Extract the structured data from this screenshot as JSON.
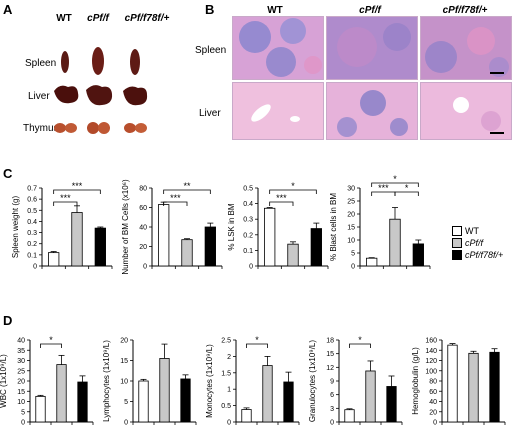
{
  "panels": {
    "a": "A",
    "b": "B",
    "c": "C",
    "d": "D"
  },
  "panel_a": {
    "columns": [
      "WT",
      "cPf/f",
      "cPf/f78f/+"
    ],
    "rows": [
      "Spleen",
      "Liver",
      "Thymus"
    ]
  },
  "panel_b": {
    "columns": [
      "WT",
      "cPf/f",
      "cPf/f78f/+"
    ],
    "rows": [
      "Spleen",
      "Liver"
    ]
  },
  "legend": [
    "WT",
    "cPf/f",
    "cPf/f78f/+"
  ],
  "colors": {
    "wt": "#ffffff",
    "cp": "#c8c8c8",
    "cp78": "#000000",
    "tissue": "#e7a9d2",
    "lymph": "#8a7fc8"
  },
  "chart_data": [
    {
      "type": "bar",
      "categories": [
        "WT",
        "cPf/f",
        "cPf/f78f/+"
      ],
      "values": [
        0.12,
        0.48,
        0.34
      ],
      "errors": [
        0.01,
        0.06,
        0.01
      ],
      "ylabel": "Spleen weight (g)",
      "ylim": [
        0,
        0.7
      ],
      "yticks": [
        0,
        0.1,
        0.2,
        0.3,
        0.4,
        0.5,
        0.6,
        0.7
      ],
      "tick_labels": [
        "0",
        "0.1",
        "0.2",
        "0.3",
        "0.4",
        "0.5",
        "0.6",
        "0.7"
      ],
      "significance": [
        {
          "a": 0,
          "b": 1,
          "label": "***"
        },
        {
          "a": 0,
          "b": 2,
          "label": "***"
        }
      ]
    },
    {
      "type": "bar",
      "categories": [
        "WT",
        "cPf/f",
        "cPf/f78f/+"
      ],
      "values": [
        63,
        27,
        40
      ],
      "errors": [
        2.5,
        1,
        4
      ],
      "ylabel": "Number of BM Cells (x10⁶)",
      "ylim": [
        0,
        80
      ],
      "yticks": [
        0,
        20,
        40,
        60,
        80
      ],
      "tick_labels": [
        "0",
        "20",
        "40",
        "60",
        "80"
      ],
      "significance": [
        {
          "a": 0,
          "b": 1,
          "label": "***"
        },
        {
          "a": 0,
          "b": 2,
          "label": "**"
        }
      ]
    },
    {
      "type": "bar",
      "categories": [
        "WT",
        "cPf/f",
        "cPf/f78f/+"
      ],
      "values": [
        0.37,
        0.14,
        0.24
      ],
      "errors": [
        0.005,
        0.015,
        0.035
      ],
      "ylabel": "% LSK in BM",
      "ylim": [
        0,
        0.5
      ],
      "yticks": [
        0,
        0.1,
        0.2,
        0.3,
        0.4,
        0.5
      ],
      "tick_labels": [
        "0",
        "0.1",
        "0.2",
        "0.3",
        "0.4",
        "0.5"
      ],
      "significance": [
        {
          "a": 0,
          "b": 1,
          "label": "***"
        },
        {
          "a": 0,
          "b": 2,
          "label": "*"
        }
      ]
    },
    {
      "type": "bar",
      "categories": [
        "WT",
        "cPf/f",
        "cPf/f78f/+"
      ],
      "values": [
        3,
        18,
        8.5
      ],
      "errors": [
        0.2,
        4.5,
        1.5
      ],
      "ylabel": "% Blast cells in BM",
      "ylim": [
        0,
        30
      ],
      "yticks": [
        0,
        5,
        10,
        15,
        20,
        25,
        30
      ],
      "tick_labels": [
        "0",
        "5",
        "10",
        "15",
        "20",
        "25",
        "30"
      ],
      "significance": [
        {
          "a": 0,
          "b": 1,
          "label": "***"
        },
        {
          "a": 1,
          "b": 2,
          "label": "*"
        },
        {
          "a": 0,
          "b": 2,
          "label": "*"
        }
      ]
    },
    {
      "type": "bar",
      "categories": [
        "WT",
        "cPf/f",
        "cPf/f78f/+"
      ],
      "values": [
        12.5,
        28,
        19.5
      ],
      "errors": [
        0.5,
        4.5,
        3
      ],
      "ylabel": "WBC (1x10⁹/L)",
      "ylim": [
        0,
        40
      ],
      "yticks": [
        0,
        5,
        10,
        15,
        20,
        25,
        30,
        35,
        40
      ],
      "tick_labels": [
        "0",
        "5",
        "10",
        "15",
        "20",
        "25",
        "30",
        "35",
        "40"
      ],
      "significance": [
        {
          "a": 0,
          "b": 1,
          "label": "*"
        }
      ]
    },
    {
      "type": "bar",
      "categories": [
        "WT",
        "cPf/f",
        "cPf/f78f/+"
      ],
      "values": [
        10,
        15.5,
        10.5
      ],
      "errors": [
        0.4,
        3.5,
        1
      ],
      "ylabel": "Lymphocytes (1x10⁹/L)",
      "ylim": [
        0,
        20
      ],
      "yticks": [
        0,
        5,
        10,
        15,
        20
      ],
      "tick_labels": [
        "0",
        "5",
        "10",
        "15",
        "20"
      ],
      "significance": []
    },
    {
      "type": "bar",
      "categories": [
        "WT",
        "cPf/f",
        "cPf/f78f/+"
      ],
      "values": [
        0.38,
        1.72,
        1.22
      ],
      "errors": [
        0.05,
        0.28,
        0.3
      ],
      "ylabel": "Monocytes (1x10⁹/L)",
      "ylim": [
        0,
        2.5
      ],
      "yticks": [
        0,
        0.5,
        1,
        1.5,
        2,
        2.5
      ],
      "tick_labels": [
        "0",
        "0.5",
        "1",
        "1.5",
        "2",
        "2.5"
      ],
      "significance": [
        {
          "a": 0,
          "b": 1,
          "label": "*"
        }
      ]
    },
    {
      "type": "bar",
      "categories": [
        "WT",
        "cPf/f",
        "cPf/f78f/+"
      ],
      "values": [
        2.7,
        11.2,
        7.8
      ],
      "errors": [
        0.2,
        2.2,
        2.3
      ],
      "ylabel": "Granulocytes (1x10⁹/L)",
      "ylim": [
        0,
        18
      ],
      "yticks": [
        0,
        3,
        6,
        9,
        12,
        15,
        18
      ],
      "tick_labels": [
        "0",
        "3",
        "6",
        "9",
        "12",
        "15",
        "18"
      ],
      "significance": [
        {
          "a": 0,
          "b": 1,
          "label": "*"
        }
      ]
    },
    {
      "type": "bar",
      "categories": [
        "WT",
        "cPf/f",
        "cPf/f78f/+"
      ],
      "values": [
        150,
        134,
        136
      ],
      "errors": [
        3,
        4,
        7
      ],
      "ylabel": "Hemoglobulin (g/L)",
      "ylim": [
        0,
        160
      ],
      "yticks": [
        0,
        20,
        40,
        60,
        80,
        100,
        120,
        140,
        160
      ],
      "tick_labels": [
        "0",
        "20",
        "40",
        "60",
        "80",
        "100",
        "120",
        "140",
        "160"
      ],
      "significance": []
    }
  ]
}
